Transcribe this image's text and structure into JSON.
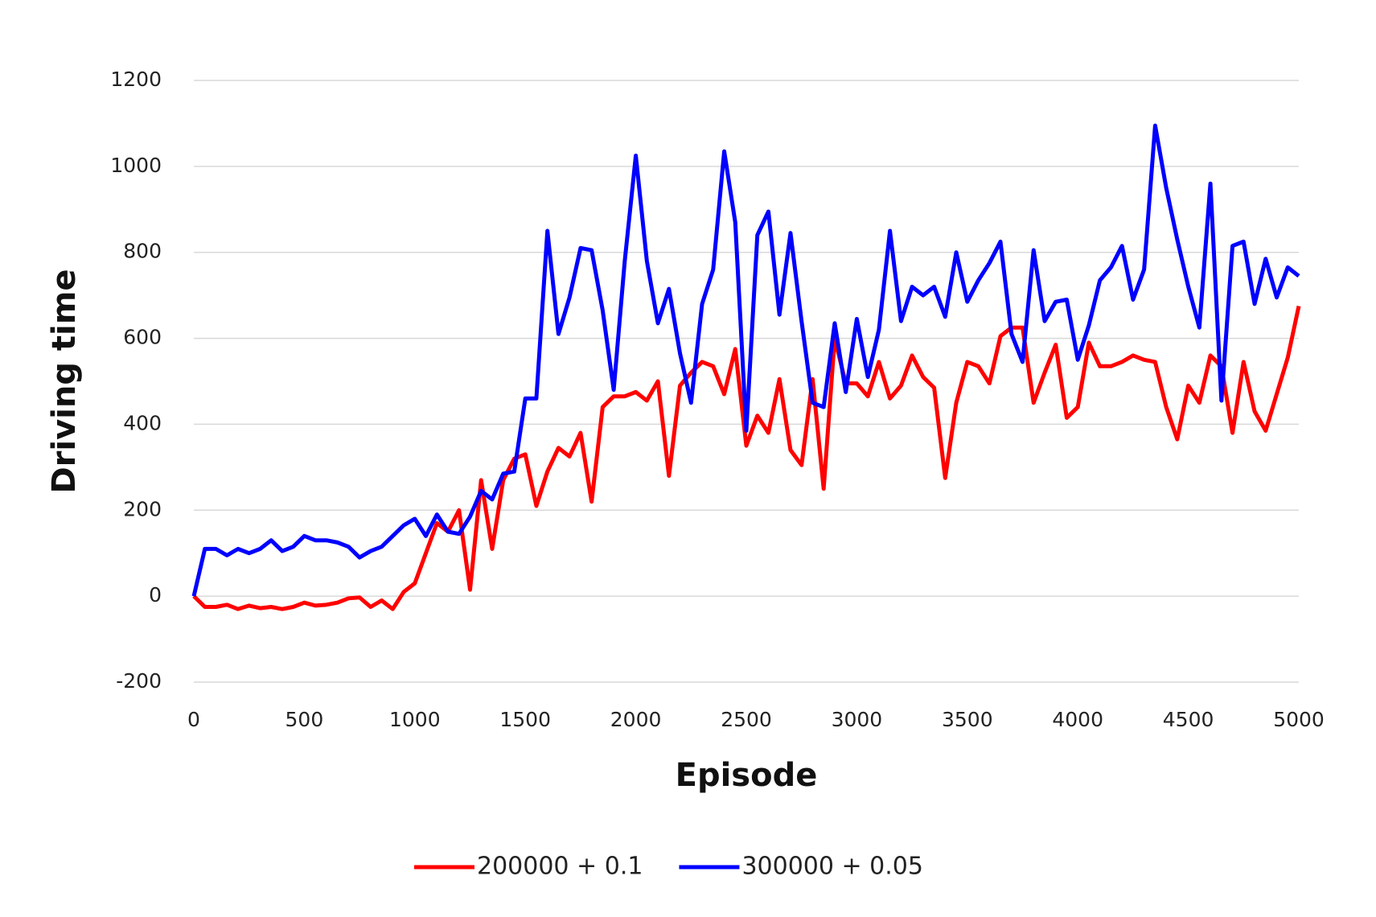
{
  "chart_data": {
    "type": "line",
    "x_label": "Episode",
    "y_label": "Driving time",
    "x": [
      0,
      50,
      100,
      150,
      200,
      250,
      300,
      350,
      400,
      450,
      500,
      550,
      600,
      650,
      700,
      750,
      800,
      850,
      900,
      950,
      1000,
      1050,
      1100,
      1150,
      1200,
      1250,
      1300,
      1350,
      1400,
      1450,
      1500,
      1550,
      1600,
      1650,
      1700,
      1750,
      1800,
      1850,
      1900,
      1950,
      2000,
      2050,
      2100,
      2150,
      2200,
      2250,
      2300,
      2350,
      2400,
      2450,
      2500,
      2550,
      2600,
      2650,
      2700,
      2750,
      2800,
      2850,
      2900,
      2950,
      3000,
      3050,
      3100,
      3150,
      3200,
      3250,
      3300,
      3350,
      3400,
      3450,
      3500,
      3550,
      3600,
      3650,
      3700,
      3750,
      3800,
      3850,
      3900,
      3950,
      4000,
      4050,
      4100,
      4150,
      4200,
      4250,
      4300,
      4350,
      4400,
      4450,
      4500,
      4550,
      4600,
      4650,
      4700,
      4750,
      4800,
      4850,
      4900,
      4950,
      5000
    ],
    "series": [
      {
        "name": "200000 + 0.1",
        "color": "#ff0000",
        "values": [
          0,
          -25,
          -25,
          -20,
          -30,
          -22,
          -28,
          -25,
          -30,
          -25,
          -15,
          -22,
          -20,
          -15,
          -5,
          -3,
          -25,
          -10,
          -30,
          10,
          30,
          100,
          170,
          150,
          200,
          15,
          270,
          110,
          270,
          320,
          330,
          210,
          290,
          345,
          325,
          380,
          220,
          440,
          465,
          465,
          475,
          455,
          500,
          280,
          490,
          520,
          545,
          535,
          470,
          575,
          350,
          420,
          380,
          505,
          340,
          305,
          505,
          250,
          600,
          495,
          495,
          465,
          545,
          460,
          490,
          560,
          510,
          485,
          275,
          450,
          545,
          535,
          495,
          605,
          625,
          625,
          450,
          520,
          585,
          415,
          440,
          590,
          535,
          535,
          545,
          560,
          550,
          545,
          440,
          365,
          490,
          450,
          560,
          535,
          380,
          545,
          430,
          385,
          470,
          555,
          675
        ]
      },
      {
        "name": "300000 + 0.05",
        "color": "#0000ff",
        "values": [
          0,
          110,
          110,
          95,
          110,
          100,
          110,
          130,
          105,
          115,
          140,
          130,
          130,
          125,
          115,
          90,
          105,
          115,
          140,
          165,
          180,
          140,
          190,
          150,
          145,
          185,
          245,
          225,
          285,
          290,
          460,
          460,
          850,
          610,
          695,
          810,
          805,
          665,
          480,
          780,
          1025,
          780,
          635,
          715,
          565,
          450,
          680,
          760,
          1035,
          870,
          385,
          840,
          895,
          655,
          845,
          640,
          450,
          440,
          635,
          475,
          645,
          510,
          620,
          850,
          640,
          720,
          700,
          720,
          650,
          800,
          685,
          735,
          775,
          825,
          610,
          545,
          805,
          640,
          685,
          690,
          550,
          630,
          735,
          765,
          815,
          690,
          760,
          1095,
          950,
          830,
          720,
          625,
          960,
          455,
          815,
          825,
          680,
          785,
          695,
          765,
          745
        ]
      }
    ],
    "xlim": [
      0,
      5000
    ],
    "xticks": [
      0,
      500,
      1000,
      1500,
      2000,
      2500,
      3000,
      3500,
      4000,
      4500,
      5000
    ],
    "ylim": [
      -200,
      1200
    ],
    "yticks": [
      -200,
      0,
      200,
      400,
      600,
      800,
      1000,
      1200
    ],
    "grid": true,
    "legend": "bottom"
  }
}
